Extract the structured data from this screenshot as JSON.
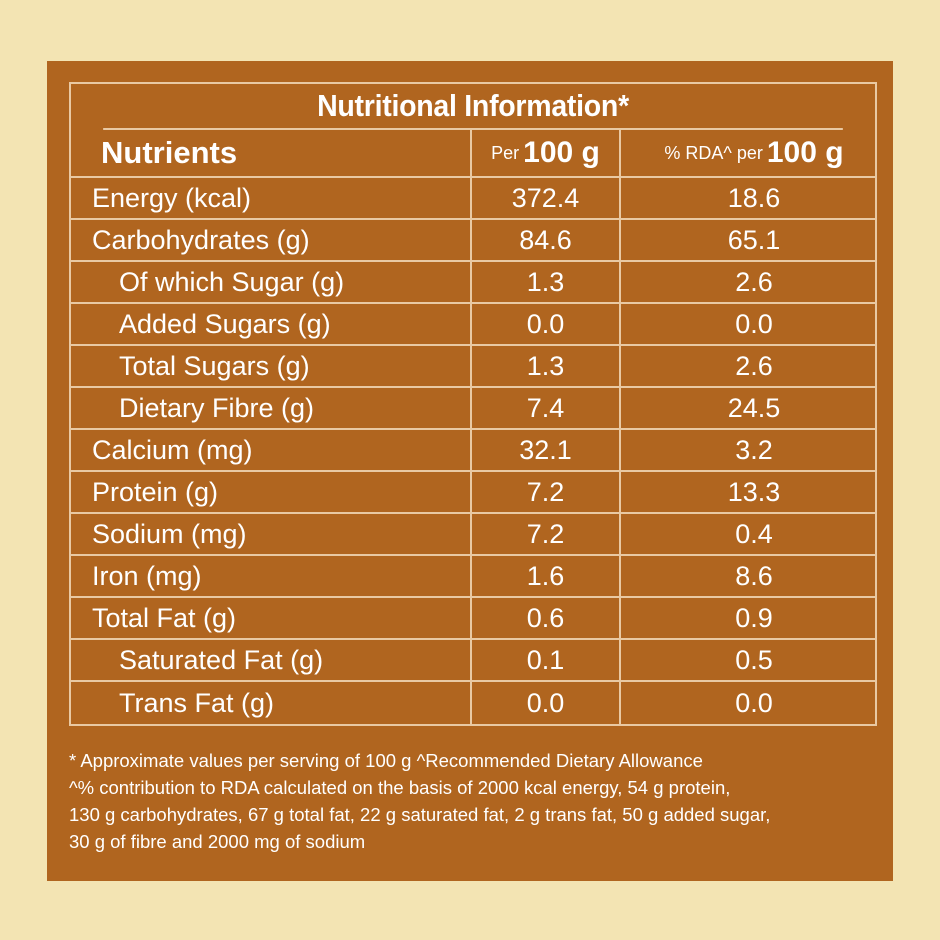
{
  "title": "Nutritional Information*",
  "header": {
    "nutrients": "Nutrients",
    "per_prefix": "Per",
    "per_value": "100 g",
    "rda_prefix": "% RDA^ per",
    "rda_value": "100 g"
  },
  "rows": [
    {
      "name": "Energy (kcal)",
      "per100": "372.4",
      "rda": "18.6",
      "indent": false
    },
    {
      "name": "Carbohydrates (g)",
      "per100": "84.6",
      "rda": "65.1",
      "indent": false
    },
    {
      "name": "Of which Sugar (g)",
      "per100": "1.3",
      "rda": "2.6",
      "indent": true
    },
    {
      "name": "Added Sugars (g)",
      "per100": "0.0",
      "rda": "0.0",
      "indent": true
    },
    {
      "name": "Total Sugars (g)",
      "per100": "1.3",
      "rda": "2.6",
      "indent": true
    },
    {
      "name": "Dietary Fibre (g)",
      "per100": "7.4",
      "rda": "24.5",
      "indent": true
    },
    {
      "name": "Calcium (mg)",
      "per100": "32.1",
      "rda": "3.2",
      "indent": false
    },
    {
      "name": "Protein (g)",
      "per100": "7.2",
      "rda": "13.3",
      "indent": false
    },
    {
      "name": "Sodium (mg)",
      "per100": "7.2",
      "rda": "0.4",
      "indent": false
    },
    {
      "name": "Iron (mg)",
      "per100": "1.6",
      "rda": "8.6",
      "indent": false
    },
    {
      "name": "Total Fat (g)",
      "per100": "0.6",
      "rda": "0.9",
      "indent": false
    },
    {
      "name": "Saturated Fat (g)",
      "per100": "0.1",
      "rda": "0.5",
      "indent": true
    },
    {
      "name": "Trans Fat (g)",
      "per100": "0.0",
      "rda": "0.0",
      "indent": true
    }
  ],
  "footnote": {
    "line1": "* Approximate values per serving of 100 g  ^Recommended Dietary Allowance",
    "line2": "^% contribution to RDA calculated on the basis of 2000 kcal energy, 54 g protein,",
    "line3": "130 g carbohydrates, 67 g total fat, 22 g saturated fat, 2 g trans fat, 50 g added sugar,",
    "line4": "30 g of fibre and 2000 mg of sodium"
  },
  "colors": {
    "background": "#f3e4b3",
    "panel": "#b0651f",
    "border": "#e9c9a3",
    "text": "#ffffff"
  }
}
